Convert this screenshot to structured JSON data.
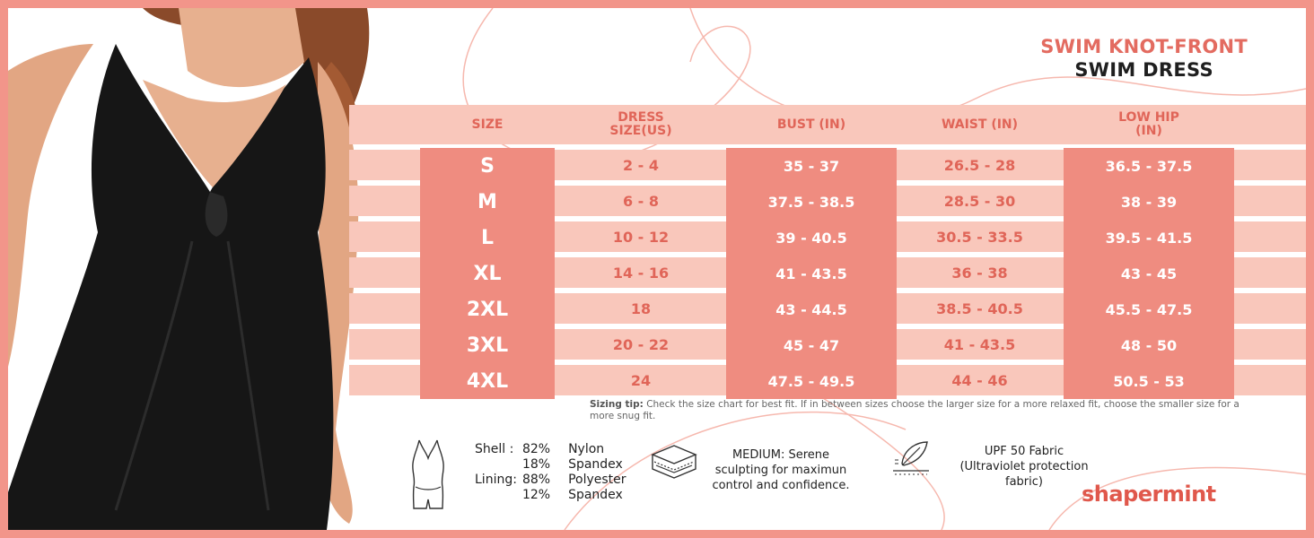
{
  "title": {
    "line1": "SWIM KNOT-FRONT",
    "line2": "SWIM DRESS"
  },
  "table": {
    "headers": {
      "size": "SIZE",
      "dress1": "DRESS",
      "dress2": "SIZE(US)",
      "bust": "BUST (IN)",
      "waist": "WAIST (IN)",
      "hip1": "LOW HIP",
      "hip2": "(IN)"
    },
    "rows": [
      {
        "size": "S",
        "dress": "2 - 4",
        "bust": "35 - 37",
        "waist": "26.5 - 28",
        "hip": "36.5 - 37.5"
      },
      {
        "size": "M",
        "dress": "6 - 8",
        "bust": "37.5 - 38.5",
        "waist": "28.5 - 30",
        "hip": "38 - 39"
      },
      {
        "size": "L",
        "dress": "10 - 12",
        "bust": "39 - 40.5",
        "waist": "30.5 - 33.5",
        "hip": "39.5 - 41.5"
      },
      {
        "size": "XL",
        "dress": "14 - 16",
        "bust": "41 - 43.5",
        "waist": "36 - 38",
        "hip": "43 - 45"
      },
      {
        "size": "2XL",
        "dress": "18",
        "bust": "43 - 44.5",
        "waist": "38.5 - 40.5",
        "hip": "45.5 - 47.5"
      },
      {
        "size": "3XL",
        "dress": "20 - 22",
        "bust": "45 - 47",
        "waist": "41 - 43.5",
        "hip": "48 - 50"
      },
      {
        "size": "4XL",
        "dress": "24",
        "bust": "47.5 - 49.5",
        "waist": "44 - 46",
        "hip": "50.5 - 53"
      }
    ]
  },
  "tip": {
    "label": "Sizing tip:",
    "text": " Check the size chart for best fit. If in between sizes choose the larger size for a more relaxed fit, choose the smaller size for a more snug fit."
  },
  "fabric": {
    "rows": [
      {
        "label": "Shell :",
        "pct": "82%",
        "material": "Nylon"
      },
      {
        "label": "",
        "pct": "18%",
        "material": "Spandex"
      },
      {
        "label": "Lining:",
        "pct": "88%",
        "material": "Polyester"
      },
      {
        "label": "",
        "pct": "12%",
        "material": "Spandex"
      }
    ]
  },
  "compression": {
    "line1": "MEDIUM: Serene",
    "line2": "sculpting for maximun",
    "line3": "control and confidence."
  },
  "upf": {
    "line1": "UPF 50 Fabric",
    "line2": "(Ultraviolet protection",
    "line3": "fabric)"
  },
  "brand": "shapermint",
  "icons": [
    "bodysuit-icon",
    "layers-icon",
    "feather-icon"
  ],
  "colors": {
    "frame": "#f2958a",
    "band": "#f9c7bb",
    "accent": "#ef8c80",
    "title": "#e36b60"
  }
}
